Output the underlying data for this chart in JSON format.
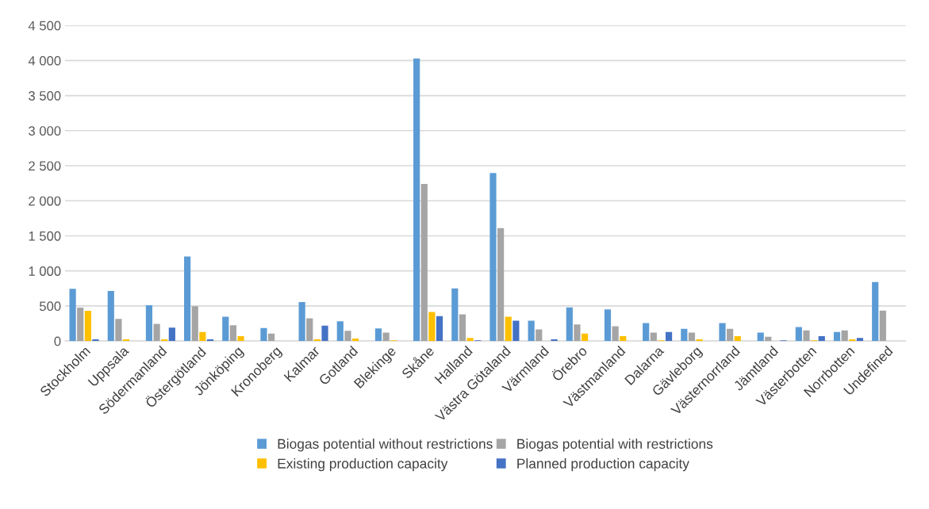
{
  "chart_data": {
    "type": "bar",
    "categories": [
      "Stockholm",
      "Uppsala",
      "Södermanland",
      "Östergötland",
      "Jönköping",
      "Kronoberg",
      "Kalmar",
      "Gotland",
      "Blekinge",
      "Skåne",
      "Halland",
      "Västra Götaland",
      "Värmland",
      "Örebro",
      "Västmanland",
      "Dalarna",
      "Gävleborg",
      "Västernorrland",
      "Jämtland",
      "Västerbotten",
      "Norrbotten",
      "Undefined"
    ],
    "series": [
      {
        "name": "Biogas potential without restrictions",
        "color": "#5b9bd5",
        "values": [
          745,
          715,
          510,
          1205,
          345,
          185,
          555,
          280,
          180,
          4030,
          750,
          2395,
          290,
          480,
          450,
          255,
          175,
          255,
          120,
          200,
          130,
          840
        ]
      },
      {
        "name": "Biogas potential with restrictions",
        "color": "#a5a5a5",
        "values": [
          475,
          315,
          245,
          495,
          225,
          105,
          325,
          145,
          120,
          2240,
          380,
          1610,
          165,
          235,
          210,
          120,
          120,
          175,
          60,
          150,
          150,
          435
        ]
      },
      {
        "name": "Existing production capacity",
        "color": "#ffc000",
        "values": [
          430,
          25,
          25,
          130,
          70,
          null,
          25,
          35,
          10,
          415,
          45,
          345,
          null,
          105,
          70,
          10,
          25,
          70,
          null,
          10,
          25,
          null
        ]
      },
      {
        "name": "Planned production capacity",
        "color": "#4472c4",
        "values": [
          25,
          null,
          190,
          25,
          null,
          null,
          220,
          null,
          null,
          355,
          10,
          290,
          25,
          null,
          null,
          130,
          null,
          null,
          10,
          70,
          45,
          null
        ]
      }
    ],
    "ylim": [
      0,
      4500
    ],
    "yticks": [
      0,
      500,
      {
        "value": 1000,
        "label": "1 000"
      },
      {
        "value": 1500,
        "label": "1 500"
      },
      {
        "value": 2000,
        "label": "2 000"
      },
      {
        "value": 2500,
        "label": "2 500"
      },
      {
        "value": 3000,
        "label": "3 000"
      },
      {
        "value": 3500,
        "label": "3 500"
      },
      {
        "value": 4000,
        "label": "4 000"
      },
      {
        "value": 4500,
        "label": "4 500"
      }
    ],
    "grid": "y",
    "legend": "bottom"
  }
}
